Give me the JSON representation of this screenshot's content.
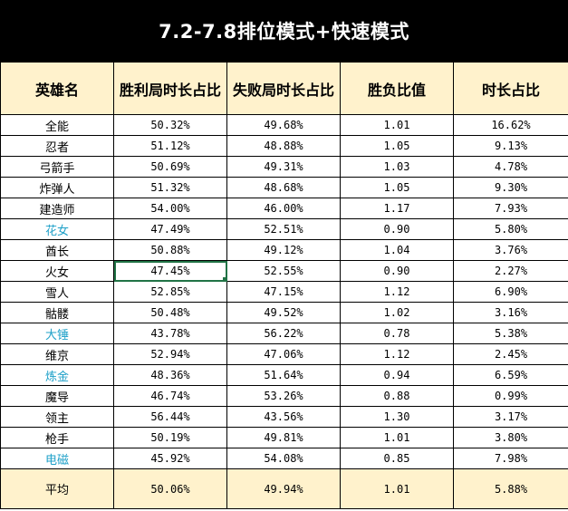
{
  "title": "7.2-7.8排位模式+快速模式",
  "headers": [
    "英雄名",
    "胜利局时长占比",
    "失败局时长占比",
    "胜负比值",
    "时长占比"
  ],
  "accent_colors": {
    "header_bg": "#fff2cc",
    "title_bg": "#000000",
    "blue_name": "#1ea0c8",
    "selection": "#217346"
  },
  "rows": [
    {
      "name": "全能",
      "win": "50.32%",
      "lose": "49.68%",
      "ratio": "1.01",
      "share": "16.62%",
      "blue": false
    },
    {
      "name": "忍者",
      "win": "51.12%",
      "lose": "48.88%",
      "ratio": "1.05",
      "share": "9.13%",
      "blue": false
    },
    {
      "name": "弓箭手",
      "win": "50.69%",
      "lose": "49.31%",
      "ratio": "1.03",
      "share": "4.78%",
      "blue": false
    },
    {
      "name": "炸弹人",
      "win": "51.32%",
      "lose": "48.68%",
      "ratio": "1.05",
      "share": "9.30%",
      "blue": false
    },
    {
      "name": "建造师",
      "win": "54.00%",
      "lose": "46.00%",
      "ratio": "1.17",
      "share": "7.93%",
      "blue": false
    },
    {
      "name": "花女",
      "win": "47.49%",
      "lose": "52.51%",
      "ratio": "0.90",
      "share": "5.80%",
      "blue": true
    },
    {
      "name": "酋长",
      "win": "50.88%",
      "lose": "49.12%",
      "ratio": "1.04",
      "share": "3.76%",
      "blue": false
    },
    {
      "name": "火女",
      "win": "47.45%",
      "lose": "52.55%",
      "ratio": "0.90",
      "share": "2.27%",
      "blue": false,
      "selected": "win"
    },
    {
      "name": "雪人",
      "win": "52.85%",
      "lose": "47.15%",
      "ratio": "1.12",
      "share": "6.90%",
      "blue": false
    },
    {
      "name": "骷髅",
      "win": "50.48%",
      "lose": "49.52%",
      "ratio": "1.02",
      "share": "3.16%",
      "blue": false
    },
    {
      "name": "大锤",
      "win": "43.78%",
      "lose": "56.22%",
      "ratio": "0.78",
      "share": "5.38%",
      "blue": true
    },
    {
      "name": "维京",
      "win": "52.94%",
      "lose": "47.06%",
      "ratio": "1.12",
      "share": "2.45%",
      "blue": false
    },
    {
      "name": "炼金",
      "win": "48.36%",
      "lose": "51.64%",
      "ratio": "0.94",
      "share": "6.59%",
      "blue": true
    },
    {
      "name": "魔导",
      "win": "46.74%",
      "lose": "53.26%",
      "ratio": "0.88",
      "share": "0.99%",
      "blue": false
    },
    {
      "name": "领主",
      "win": "56.44%",
      "lose": "43.56%",
      "ratio": "1.30",
      "share": "3.17%",
      "blue": false
    },
    {
      "name": "枪手",
      "win": "50.19%",
      "lose": "49.81%",
      "ratio": "1.01",
      "share": "3.80%",
      "blue": false
    },
    {
      "name": "电磁",
      "win": "45.92%",
      "lose": "54.08%",
      "ratio": "0.85",
      "share": "7.98%",
      "blue": true
    }
  ],
  "footer": {
    "name": "平均",
    "win": "50.06%",
    "lose": "49.94%",
    "ratio": "1.01",
    "share": "5.88%"
  }
}
